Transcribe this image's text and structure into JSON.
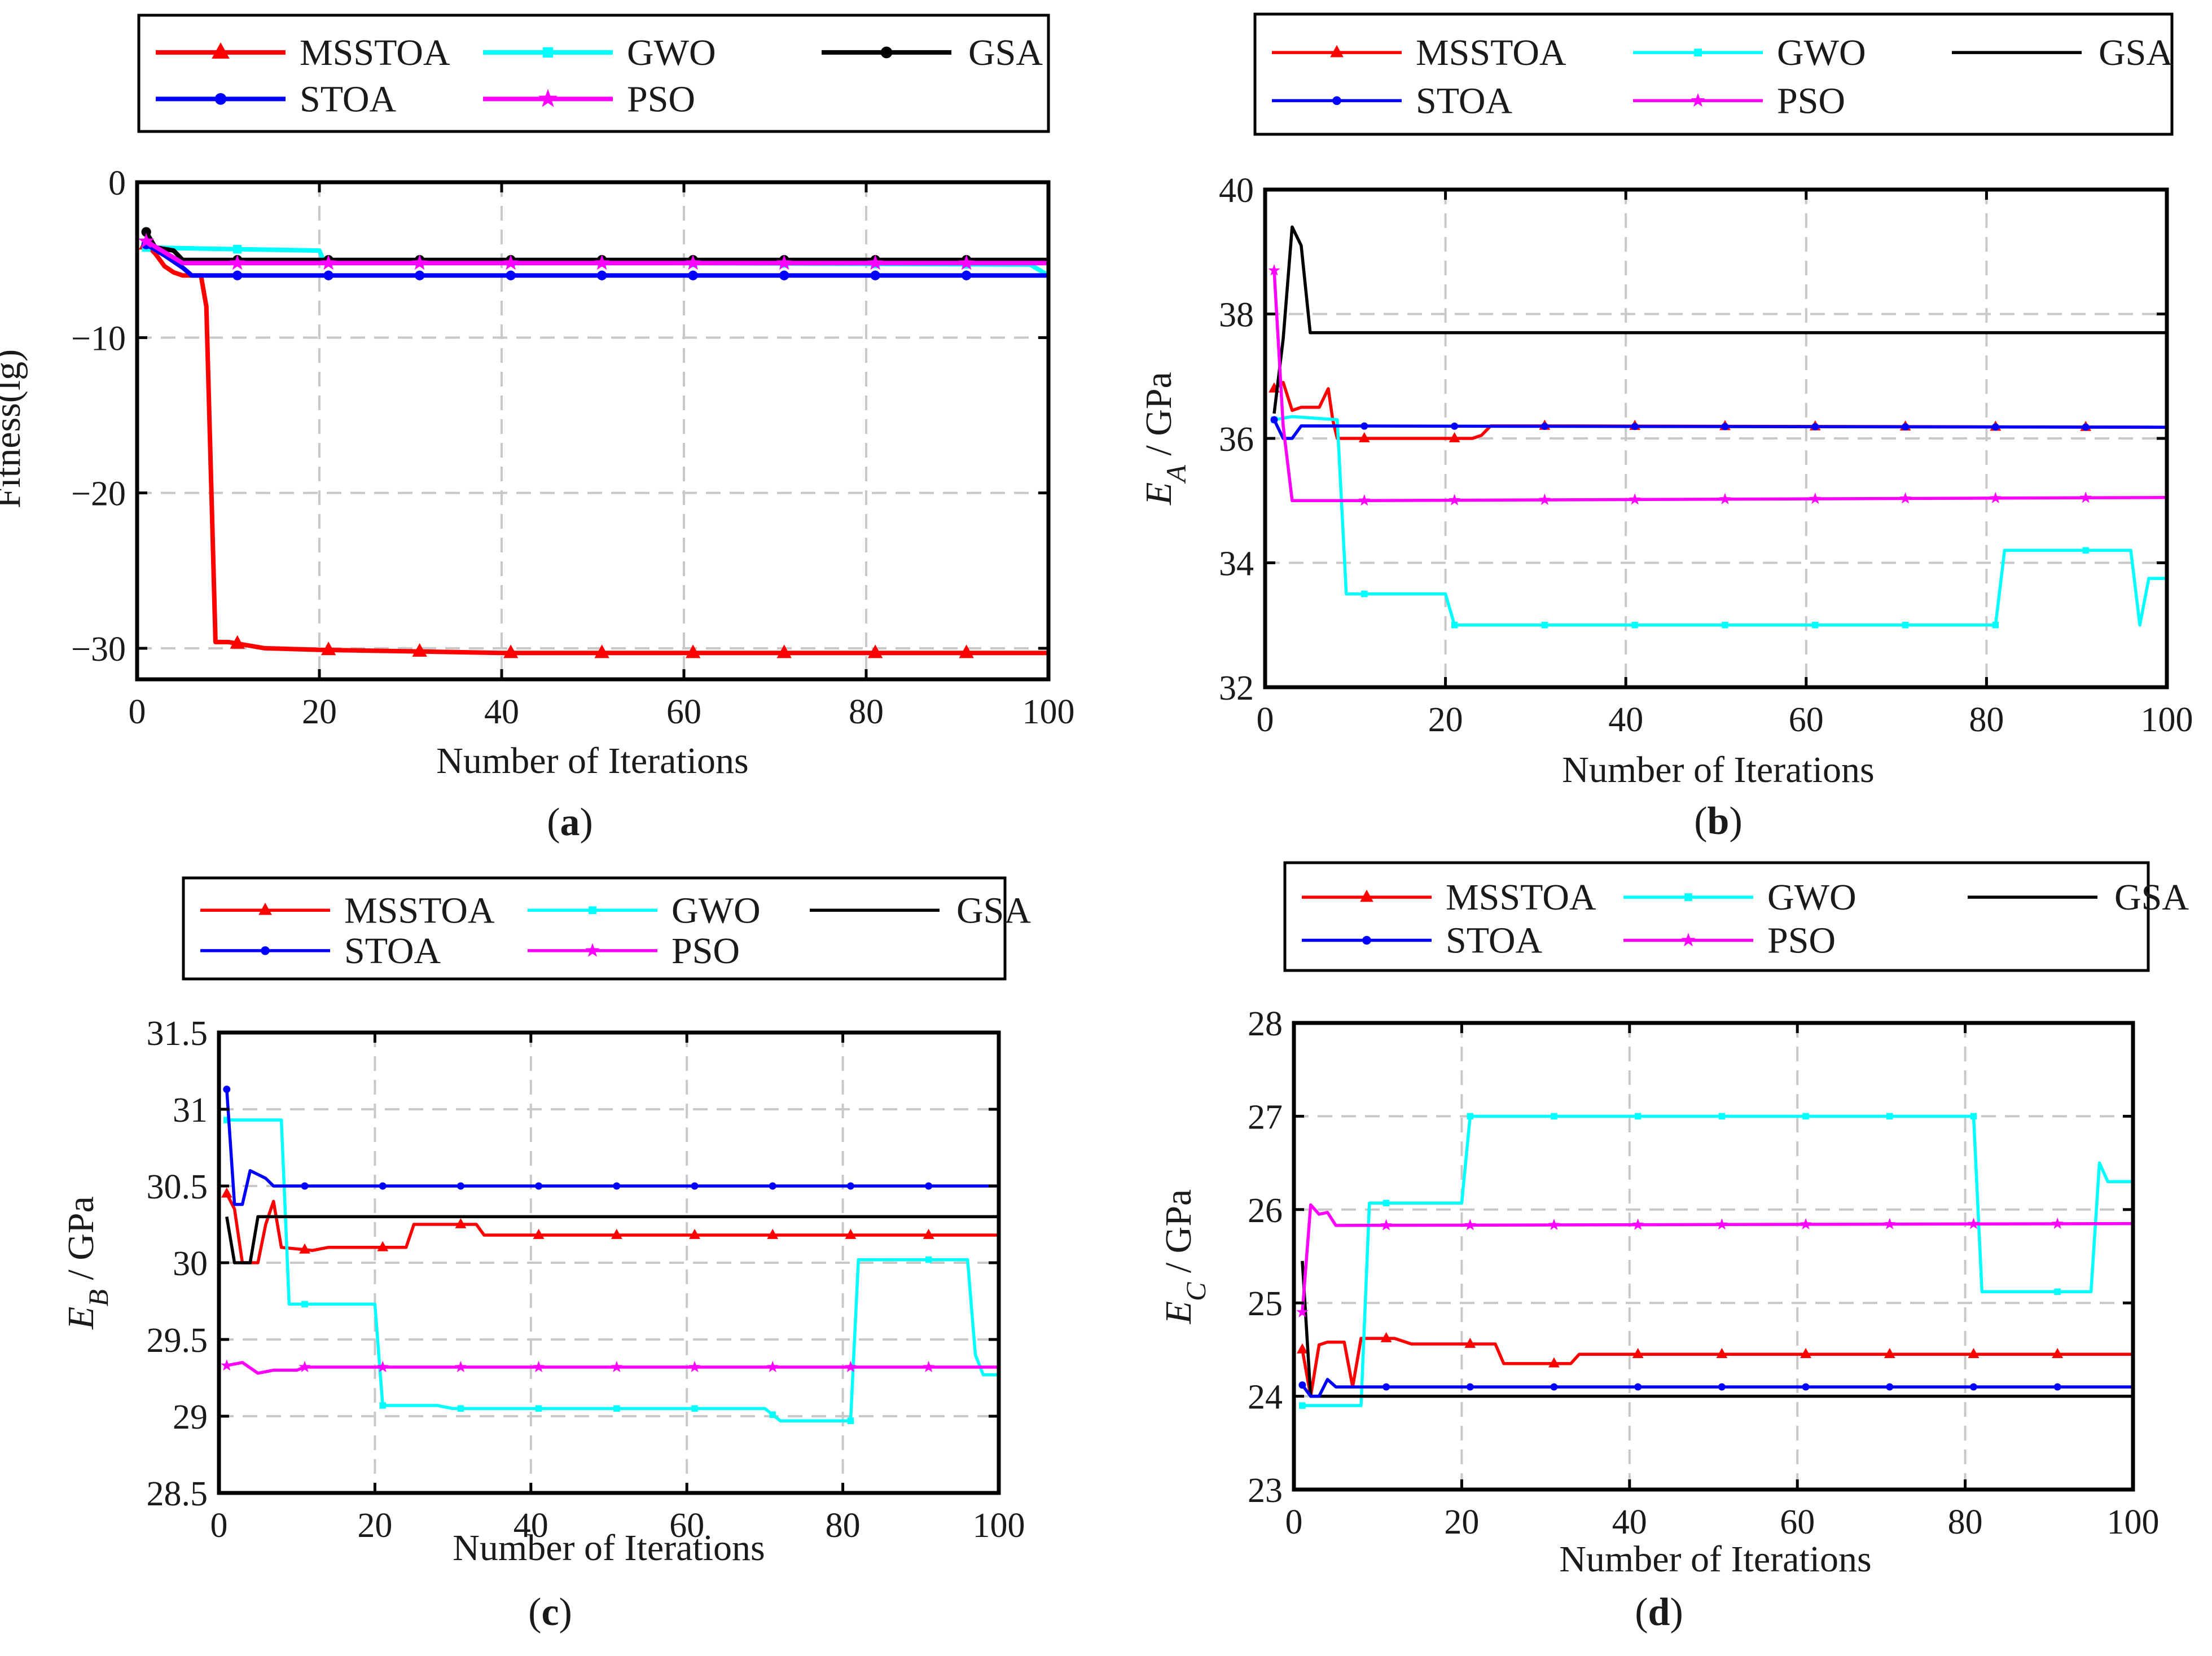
{
  "chart_data": [
    {
      "id": "a",
      "type": "line",
      "caption": [
        "(",
        "a",
        ")"
      ],
      "xlabel": "Number of Iterations",
      "ylabel": "Fitness(lg)",
      "xlim": [
        0,
        100
      ],
      "ylim": [
        -32,
        0
      ],
      "xticks": [
        0,
        20,
        40,
        60,
        80,
        100
      ],
      "yticks": [
        -30,
        -20,
        -10,
        0
      ],
      "ytick_labels": [
        "−30",
        "−20",
        "−10",
        "0"
      ],
      "grid": true,
      "series": [
        {
          "name": "MSSTOA",
          "color": "#ff0000",
          "marker": "triangle",
          "points": [
            [
              1,
              -4
            ],
            [
              2,
              -4.6
            ],
            [
              3,
              -5.4
            ],
            [
              4,
              -5.8
            ],
            [
              5,
              -6
            ],
            [
              7,
              -6
            ],
            [
              7.6,
              -8
            ],
            [
              8.6,
              -29.6
            ],
            [
              10,
              -29.6
            ],
            [
              14,
              -30
            ],
            [
              20,
              -30.1
            ],
            [
              30,
              -30.2
            ],
            [
              40,
              -30.3
            ],
            [
              60,
              -30.3
            ],
            [
              100,
              -30.3
            ]
          ]
        },
        {
          "name": "GWO",
          "color": "#00ffff",
          "marker": "square",
          "points": [
            [
              1,
              -4.2
            ],
            [
              10,
              -4.3
            ],
            [
              20,
              -4.4
            ],
            [
              20.5,
              -5.1
            ],
            [
              60,
              -5.2
            ],
            [
              98,
              -5.3
            ],
            [
              100,
              -6
            ]
          ]
        },
        {
          "name": "GSA",
          "color": "#000000",
          "marker": "dot",
          "points": [
            [
              1,
              -3.2
            ],
            [
              2,
              -4.2
            ],
            [
              4,
              -4.4
            ],
            [
              5,
              -5
            ],
            [
              100,
              -5
            ]
          ]
        },
        {
          "name": "STOA",
          "color": "#0000ff",
          "marker": "dot",
          "points": [
            [
              1,
              -4
            ],
            [
              3,
              -4.7
            ],
            [
              5,
              -5.5
            ],
            [
              6,
              -6
            ],
            [
              100,
              -6
            ]
          ]
        },
        {
          "name": "PSO",
          "color": "#ff00ff",
          "marker": "star",
          "points": [
            [
              1,
              -3.8
            ],
            [
              3,
              -4.5
            ],
            [
              5,
              -5.2
            ],
            [
              100,
              -5.2
            ]
          ]
        }
      ]
    },
    {
      "id": "b",
      "type": "line",
      "caption": [
        "(",
        "b",
        ")"
      ],
      "xlabel": "Number of Iterations",
      "ylabel_main": "E",
      "ylabel_sub": "A",
      "ylabel_unit": " / GPa",
      "xlim": [
        0,
        100
      ],
      "ylim": [
        32,
        40
      ],
      "xticks": [
        0,
        20,
        40,
        60,
        80,
        100
      ],
      "yticks": [
        32,
        34,
        36,
        38,
        40
      ],
      "ytick_labels": [
        "32",
        "34",
        "36",
        "38",
        "40"
      ],
      "grid": true,
      "series": [
        {
          "name": "MSSTOA",
          "color": "#ff0000",
          "marker": "triangle",
          "points": [
            [
              1,
              36.8
            ],
            [
              2,
              36.9
            ],
            [
              3,
              36.45
            ],
            [
              4,
              36.5
            ],
            [
              6,
              36.5
            ],
            [
              7,
              36.8
            ],
            [
              7.5,
              36.3
            ],
            [
              8,
              36
            ],
            [
              23,
              36
            ],
            [
              24,
              36.05
            ],
            [
              25,
              36.2
            ],
            [
              34,
              36.2
            ],
            [
              100,
              36.18
            ]
          ]
        },
        {
          "name": "GWO",
          "color": "#00ffff",
          "marker": "square",
          "points": [
            [
              1,
              36.3
            ],
            [
              3,
              36.35
            ],
            [
              8,
              36.3
            ],
            [
              9,
              33.5
            ],
            [
              20,
              33.5
            ],
            [
              21,
              33
            ],
            [
              81,
              33
            ],
            [
              82,
              34.2
            ],
            [
              96,
              34.2
            ],
            [
              97,
              33
            ],
            [
              98,
              33.75
            ],
            [
              100,
              33.75
            ]
          ]
        },
        {
          "name": "GSA",
          "color": "#000000",
          "marker": "none",
          "points": [
            [
              1,
              36.4
            ],
            [
              2,
              37.6
            ],
            [
              3,
              39.4
            ],
            [
              4,
              39.1
            ],
            [
              5,
              37.7
            ],
            [
              100,
              37.7
            ]
          ]
        },
        {
          "name": "STOA",
          "color": "#0000ff",
          "marker": "dot",
          "points": [
            [
              1,
              36.3
            ],
            [
              2,
              36
            ],
            [
              3,
              36
            ],
            [
              4,
              36.2
            ],
            [
              100,
              36.18
            ]
          ]
        },
        {
          "name": "PSO",
          "color": "#ff00ff",
          "marker": "star",
          "points": [
            [
              1,
              38.7
            ],
            [
              2,
              36.2
            ],
            [
              3,
              35
            ],
            [
              10,
              35
            ],
            [
              100,
              35.05
            ]
          ]
        }
      ]
    },
    {
      "id": "c",
      "type": "line",
      "caption": [
        "(",
        "c",
        ")"
      ],
      "xlabel": "Number of Iterations",
      "ylabel_main": "E",
      "ylabel_sub": "B",
      "ylabel_unit": " / GPa",
      "xlim": [
        0,
        100
      ],
      "ylim": [
        28.5,
        31.5
      ],
      "xticks": [
        0,
        20,
        40,
        60,
        80,
        100
      ],
      "yticks": [
        28.5,
        29,
        29.5,
        30,
        30.5,
        31,
        31.5
      ],
      "ytick_labels": [
        "28.5",
        "29",
        "29.5",
        "30",
        "30.5",
        "31",
        "31.5"
      ],
      "grid": true,
      "series": [
        {
          "name": "MSSTOA",
          "color": "#ff0000",
          "marker": "triangle",
          "points": [
            [
              1,
              30.45
            ],
            [
              2,
              30.35
            ],
            [
              3,
              30
            ],
            [
              5,
              30
            ],
            [
              6,
              30.25
            ],
            [
              7,
              30.4
            ],
            [
              8,
              30.1
            ],
            [
              12,
              30.08
            ],
            [
              14,
              30.1
            ],
            [
              24,
              30.1
            ],
            [
              25,
              30.25
            ],
            [
              33,
              30.25
            ],
            [
              34,
              30.18
            ],
            [
              100,
              30.18
            ]
          ]
        },
        {
          "name": "GWO",
          "color": "#00ffff",
          "marker": "square",
          "points": [
            [
              1,
              30.93
            ],
            [
              8,
              30.93
            ],
            [
              9,
              29.73
            ],
            [
              20,
              29.73
            ],
            [
              21,
              29.07
            ],
            [
              28,
              29.07
            ],
            [
              30,
              29.05
            ],
            [
              70,
              29.05
            ],
            [
              72,
              28.97
            ],
            [
              81,
              28.97
            ],
            [
              82,
              30.02
            ],
            [
              96,
              30.02
            ],
            [
              97,
              29.4
            ],
            [
              98,
              29.27
            ],
            [
              100,
              29.27
            ]
          ]
        },
        {
          "name": "GSA",
          "color": "#000000",
          "marker": "none",
          "points": [
            [
              1,
              30.3
            ],
            [
              2,
              30
            ],
            [
              4,
              30
            ],
            [
              5,
              30.3
            ],
            [
              100,
              30.3
            ]
          ]
        },
        {
          "name": "STOA",
          "color": "#0000ff",
          "marker": "dot",
          "points": [
            [
              1,
              31.13
            ],
            [
              2,
              30.38
            ],
            [
              3,
              30.38
            ],
            [
              4,
              30.6
            ],
            [
              6,
              30.55
            ],
            [
              7,
              30.5
            ],
            [
              100,
              30.5
            ]
          ]
        },
        {
          "name": "PSO",
          "color": "#ff00ff",
          "marker": "star",
          "points": [
            [
              1,
              29.33
            ],
            [
              3,
              29.35
            ],
            [
              5,
              29.28
            ],
            [
              7,
              29.3
            ],
            [
              10,
              29.3
            ],
            [
              11,
              29.32
            ],
            [
              100,
              29.32
            ]
          ]
        }
      ]
    },
    {
      "id": "d",
      "type": "line",
      "caption": [
        "(",
        "d",
        ")"
      ],
      "xlabel": "Number of Iterations",
      "ylabel_main": "E",
      "ylabel_sub": "C",
      "ylabel_unit": " / GPa",
      "xlim": [
        0,
        100
      ],
      "ylim": [
        23,
        28
      ],
      "xticks": [
        0,
        20,
        40,
        60,
        80,
        100
      ],
      "yticks": [
        23,
        24,
        25,
        26,
        27,
        28
      ],
      "ytick_labels": [
        "23",
        "24",
        "25",
        "26",
        "27",
        "28"
      ],
      "grid": true,
      "series": [
        {
          "name": "MSSTOA",
          "color": "#ff0000",
          "marker": "triangle",
          "points": [
            [
              1,
              24.5
            ],
            [
              2,
              24
            ],
            [
              3,
              24.55
            ],
            [
              4,
              24.58
            ],
            [
              6,
              24.58
            ],
            [
              7,
              24.1
            ],
            [
              8,
              24.62
            ],
            [
              12,
              24.62
            ],
            [
              14,
              24.56
            ],
            [
              24,
              24.56
            ],
            [
              25,
              24.35
            ],
            [
              33,
              24.35
            ],
            [
              34,
              24.45
            ],
            [
              100,
              24.45
            ]
          ]
        },
        {
          "name": "GWO",
          "color": "#00ffff",
          "marker": "square",
          "points": [
            [
              1,
              23.9
            ],
            [
              8,
              23.9
            ],
            [
              9,
              26.07
            ],
            [
              20,
              26.07
            ],
            [
              21,
              27
            ],
            [
              81,
              27
            ],
            [
              82,
              25.12
            ],
            [
              95,
              25.12
            ],
            [
              96,
              26.5
            ],
            [
              97,
              26.3
            ],
            [
              100,
              26.3
            ]
          ]
        },
        {
          "name": "GSA",
          "color": "#000000",
          "marker": "none",
          "points": [
            [
              1,
              25.45
            ],
            [
              2,
              24
            ],
            [
              100,
              24
            ]
          ]
        },
        {
          "name": "STOA",
          "color": "#0000ff",
          "marker": "dot",
          "points": [
            [
              1,
              24.12
            ],
            [
              2,
              24
            ],
            [
              3,
              24
            ],
            [
              4,
              24.18
            ],
            [
              5,
              24.1
            ],
            [
              100,
              24.1
            ]
          ]
        },
        {
          "name": "PSO",
          "color": "#ff00ff",
          "marker": "star",
          "points": [
            [
              1,
              24.9
            ],
            [
              2,
              26.05
            ],
            [
              3,
              25.95
            ],
            [
              4,
              25.97
            ],
            [
              5,
              25.83
            ],
            [
              100,
              25.85
            ]
          ]
        }
      ]
    }
  ]
}
